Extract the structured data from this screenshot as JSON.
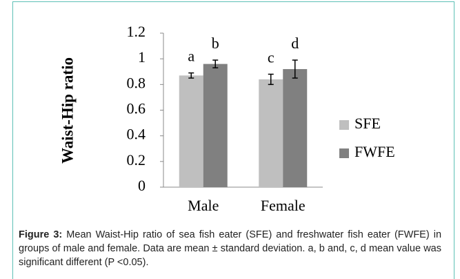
{
  "chart_data": {
    "type": "bar",
    "ylabel": "Waist-Hip ratio",
    "categories": [
      "Male",
      "Female"
    ],
    "series": [
      {
        "name": "SFE",
        "color": "#bfbfbf",
        "values": [
          0.87,
          0.84
        ],
        "errors": [
          0.02,
          0.04
        ],
        "annotations": [
          "a",
          "c"
        ]
      },
      {
        "name": "FWFE",
        "color": "#808080",
        "values": [
          0.96,
          0.92
        ],
        "errors": [
          0.03,
          0.07
        ],
        "annotations": [
          "b",
          "d"
        ]
      }
    ],
    "ylim": [
      0,
      1.2
    ],
    "yticks": [
      0,
      0.2,
      0.4,
      0.6,
      0.8,
      1,
      1.2
    ],
    "grid": false,
    "legend": "right"
  },
  "caption": {
    "label": "Figure 3:",
    "text": "Mean Waist-Hip ratio of sea fish eater (SFE) and freshwater fish eater (FWFE) in groups of male and female. Data are mean ± standard deviation. a, b and, c, d mean value was significant different (P <0.05)."
  }
}
